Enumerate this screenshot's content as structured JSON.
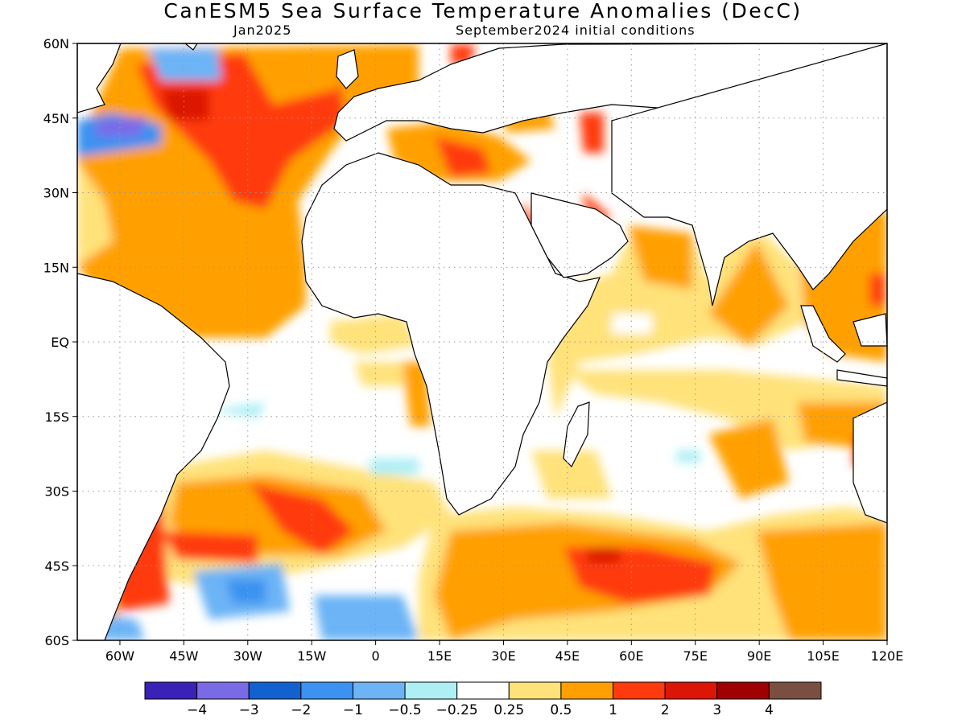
{
  "title": "CanESM5 Sea Surface Temperature Anomalies (DecC)",
  "subtitle_left": "Jan2025",
  "subtitle_right": "September2024 initial conditions",
  "map": {
    "lon_range": [
      -70,
      120
    ],
    "lat_range": [
      -60,
      60
    ],
    "lat_ticks": [
      "60N",
      "45N",
      "30N",
      "15N",
      "EQ",
      "15S",
      "30S",
      "45S",
      "60S"
    ],
    "lon_ticks": [
      "60W",
      "45W",
      "30W",
      "15W",
      "0",
      "15E",
      "30E",
      "45E",
      "60E",
      "75E",
      "90E",
      "105E",
      "120E"
    ],
    "gridlines": true
  },
  "colorbar": {
    "colors": [
      "#3a21b8",
      "#7b6ae6",
      "#1261d0",
      "#3b92f0",
      "#6cb4f6",
      "#aeeff5",
      "#ffffff",
      "#ffe27a",
      "#ffa000",
      "#ff3a0f",
      "#dc1505",
      "#a00000",
      "#7a4f42"
    ],
    "labels": [
      "−4",
      "−3",
      "−2",
      "−1",
      "−0.5",
      "−0.25",
      "0.25",
      "0.5",
      "1",
      "2",
      "3",
      "4"
    ]
  }
}
